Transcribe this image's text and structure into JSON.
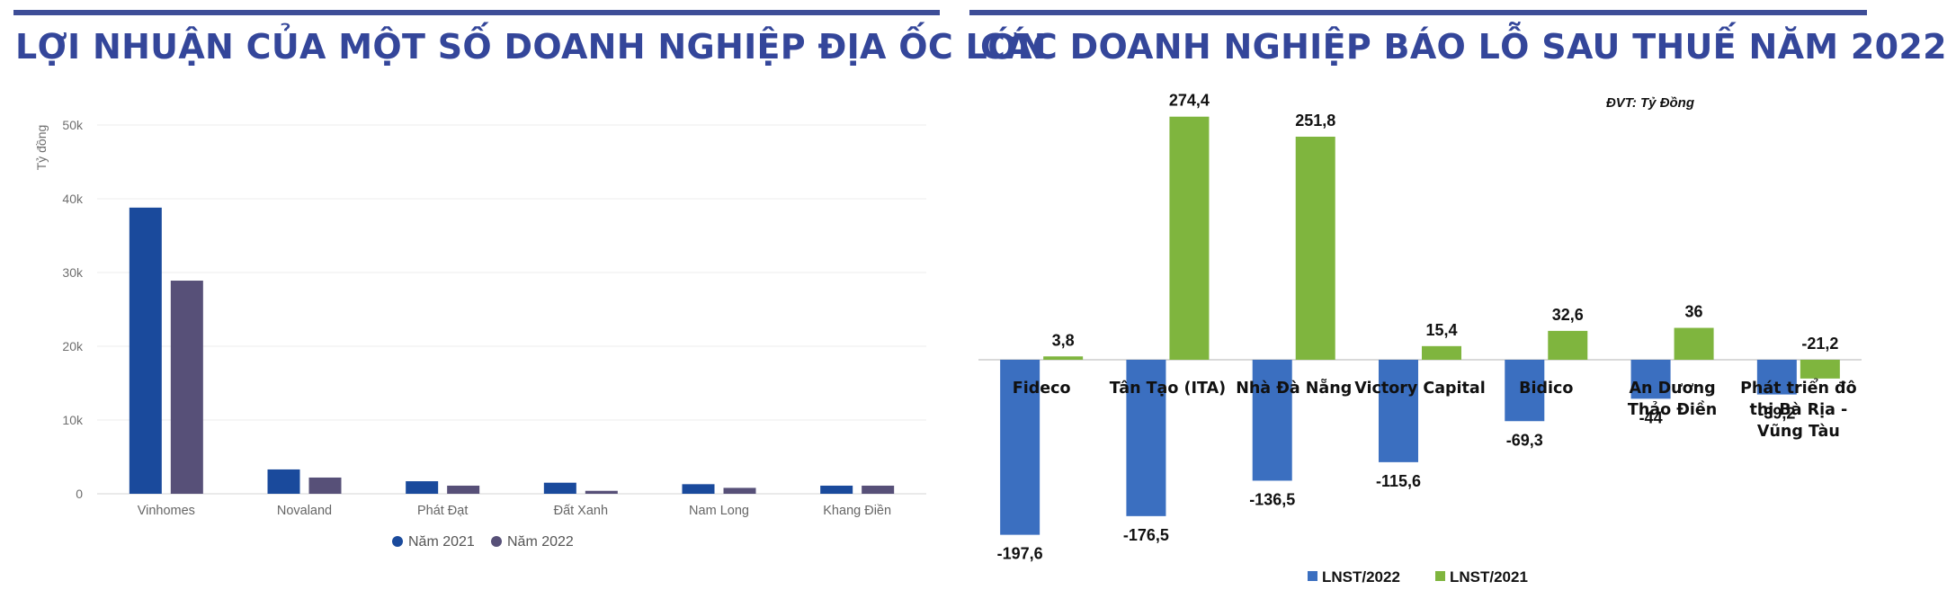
{
  "titles": {
    "left": "LỢI NHUẬN CỦA MỘT SỐ DOANH NGHIỆP ĐỊA ỐC LỚN",
    "right": "CÁC DOANH NGHIỆP BÁO LỖ SAU THUẾ NĂM 2022"
  },
  "colors": {
    "accent": "#34469a",
    "nam2021": "#1a4a9c",
    "nam2022": "#575078",
    "lnst2022": "#3b6fc0",
    "lnst2021": "#7fb53e"
  },
  "chart_data": [
    {
      "type": "bar",
      "title": "LỢI NHUẬN CỦA MỘT SỐ DOANH NGHIỆP ĐỊA ỐC LỚN",
      "ylabel": "Tỷ đồng",
      "yticks": [
        "0",
        "10k",
        "20k",
        "30k",
        "40k",
        "50k"
      ],
      "ylim": [
        0,
        50000
      ],
      "categories": [
        "Vinhomes",
        "Novaland",
        "Phát Đạt",
        "Đất Xanh",
        "Nam Long",
        "Khang Điền"
      ],
      "series": [
        {
          "name": "Năm 2021",
          "values": [
            38800,
            3300,
            1700,
            1500,
            1300,
            1100
          ]
        },
        {
          "name": "Năm 2022",
          "values": [
            28900,
            2200,
            1100,
            400,
            800,
            1100
          ]
        }
      ],
      "legend": "bottom",
      "grid": true
    },
    {
      "type": "bar",
      "title": "CÁC DOANH NGHIỆP BÁO LỖ SAU THUẾ NĂM 2022",
      "unit": "ĐVT: Tỷ Đồng",
      "categories": [
        [
          "Fideco"
        ],
        [
          "Tân Tạo (ITA)"
        ],
        [
          "Nhà Đà Nẵng"
        ],
        [
          "Victory Capital"
        ],
        [
          "Bidico"
        ],
        [
          "An Dương",
          "Thảo Điền"
        ],
        [
          "Phát triển đô",
          "thị Bà Rịa -",
          "Vũng Tàu"
        ]
      ],
      "series": [
        {
          "name": "LNST/2022",
          "values": [
            -197.6,
            -176.5,
            -136.5,
            -115.6,
            -69.3,
            -44,
            -39.2
          ],
          "labels": [
            "-197,6",
            "-176,5",
            "-136,5",
            "-115,6",
            "-69,3",
            "-44",
            "-39,2"
          ]
        },
        {
          "name": "LNST/2021",
          "values": [
            3.8,
            274.4,
            251.8,
            15.4,
            32.6,
            36,
            -21.2
          ],
          "labels": [
            "3,8",
            "274,4",
            "251,8",
            "15,4",
            "32,6",
            "36",
            "-21,2"
          ]
        }
      ],
      "legend": "bottom",
      "grid": false
    }
  ]
}
